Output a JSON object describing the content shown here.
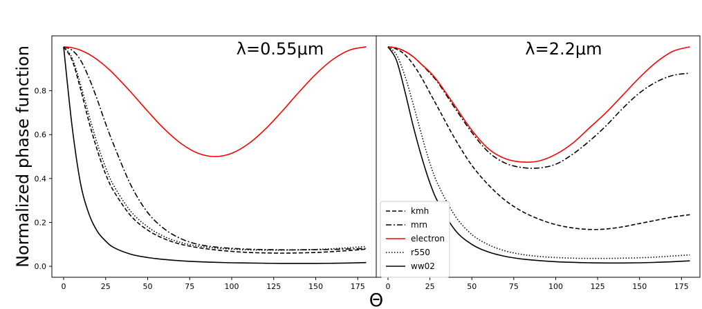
{
  "figure": {
    "ylabel": "Normalized phase function",
    "xlabel": "Θ"
  },
  "chart_data": [
    {
      "type": "line",
      "title": "λ=0.55μm",
      "xlabel": "Θ",
      "ylabel": "Normalized phase function",
      "xlim": [
        -7,
        186
      ],
      "ylim": [
        -0.05,
        1.05
      ],
      "xticks": [
        0,
        25,
        50,
        75,
        100,
        125,
        150,
        175
      ],
      "yticks": [
        0.0,
        0.2,
        0.4,
        0.6,
        0.8
      ],
      "grid": false,
      "x": [
        0,
        5,
        10,
        15,
        20,
        25,
        30,
        40,
        50,
        60,
        70,
        80,
        90,
        100,
        110,
        120,
        130,
        140,
        150,
        160,
        170,
        180
      ],
      "series": [
        {
          "name": "kmh",
          "style": "dashed",
          "color": "#000000",
          "values": [
            1.0,
            0.94,
            0.81,
            0.66,
            0.53,
            0.42,
            0.34,
            0.23,
            0.165,
            0.125,
            0.1,
            0.085,
            0.075,
            0.068,
            0.063,
            0.061,
            0.06,
            0.061,
            0.063,
            0.067,
            0.072,
            0.078
          ]
        },
        {
          "name": "mrn",
          "style": "dashdot",
          "color": "#000000",
          "values": [
            1.0,
            0.985,
            0.94,
            0.86,
            0.76,
            0.65,
            0.55,
            0.37,
            0.245,
            0.17,
            0.125,
            0.1,
            0.088,
            0.082,
            0.078,
            0.076,
            0.075,
            0.075,
            0.076,
            0.077,
            0.079,
            0.081
          ]
        },
        {
          "name": "electron",
          "style": "solid",
          "color": "#ff0000",
          "values": [
            1.0,
            0.9962,
            0.9849,
            0.9665,
            0.9415,
            0.9107,
            0.875,
            0.7934,
            0.7066,
            0.625,
            0.5585,
            0.5151,
            0.5,
            0.5151,
            0.5585,
            0.625,
            0.7066,
            0.7934,
            0.875,
            0.9415,
            0.9849,
            1.0
          ]
        },
        {
          "name": "r550",
          "style": "dotted",
          "color": "#000000",
          "values": [
            1.0,
            0.95,
            0.83,
            0.69,
            0.56,
            0.45,
            0.365,
            0.25,
            0.18,
            0.135,
            0.108,
            0.092,
            0.083,
            0.078,
            0.075,
            0.074,
            0.074,
            0.075,
            0.077,
            0.08,
            0.085,
            0.09
          ]
        },
        {
          "name": "ww02",
          "style": "solid",
          "color": "#000000",
          "values": [
            1.0,
            0.64,
            0.38,
            0.24,
            0.16,
            0.115,
            0.085,
            0.055,
            0.04,
            0.031,
            0.025,
            0.021,
            0.018,
            0.016,
            0.015,
            0.014,
            0.013,
            0.013,
            0.013,
            0.014,
            0.015,
            0.017
          ]
        }
      ]
    },
    {
      "type": "line",
      "title": "λ=2.2μm",
      "xlabel": "Θ",
      "ylabel": "",
      "xlim": [
        -7,
        186
      ],
      "ylim": [
        -0.05,
        1.05
      ],
      "xticks": [
        0,
        25,
        50,
        75,
        100,
        125,
        150,
        175
      ],
      "yticks": [],
      "grid": false,
      "legend": "lower-left",
      "x": [
        0,
        5,
        10,
        15,
        20,
        25,
        30,
        40,
        50,
        60,
        70,
        80,
        90,
        100,
        110,
        120,
        130,
        140,
        150,
        160,
        170,
        180
      ],
      "series": [
        {
          "name": "kmh",
          "style": "dashed",
          "color": "#000000",
          "values": [
            1.0,
            0.99,
            0.965,
            0.92,
            0.86,
            0.79,
            0.72,
            0.58,
            0.46,
            0.37,
            0.3,
            0.25,
            0.215,
            0.19,
            0.175,
            0.168,
            0.17,
            0.18,
            0.195,
            0.21,
            0.225,
            0.235
          ]
        },
        {
          "name": "mrn",
          "style": "dashdot",
          "color": "#000000",
          "values": [
            1.0,
            0.995,
            0.98,
            0.955,
            0.92,
            0.88,
            0.835,
            0.72,
            0.61,
            0.52,
            0.47,
            0.45,
            0.448,
            0.465,
            0.51,
            0.57,
            0.64,
            0.72,
            0.79,
            0.84,
            0.87,
            0.88
          ]
        },
        {
          "name": "electron",
          "style": "solid",
          "color": "#ff0000",
          "values": [
            1.0,
            0.995,
            0.98,
            0.955,
            0.92,
            0.885,
            0.84,
            0.73,
            0.62,
            0.535,
            0.49,
            0.475,
            0.48,
            0.51,
            0.56,
            0.63,
            0.7,
            0.78,
            0.86,
            0.93,
            0.98,
            1.0
          ]
        },
        {
          "name": "r550",
          "style": "dotted",
          "color": "#000000",
          "values": [
            1.0,
            0.965,
            0.87,
            0.74,
            0.6,
            0.47,
            0.37,
            0.23,
            0.145,
            0.098,
            0.07,
            0.054,
            0.045,
            0.04,
            0.037,
            0.036,
            0.036,
            0.037,
            0.039,
            0.042,
            0.047,
            0.052
          ]
        },
        {
          "name": "ww02",
          "style": "solid",
          "color": "#000000",
          "values": [
            1.0,
            0.94,
            0.8,
            0.64,
            0.5,
            0.38,
            0.29,
            0.165,
            0.1,
            0.065,
            0.045,
            0.033,
            0.026,
            0.021,
            0.018,
            0.016,
            0.015,
            0.015,
            0.016,
            0.018,
            0.021,
            0.025
          ]
        }
      ]
    }
  ]
}
